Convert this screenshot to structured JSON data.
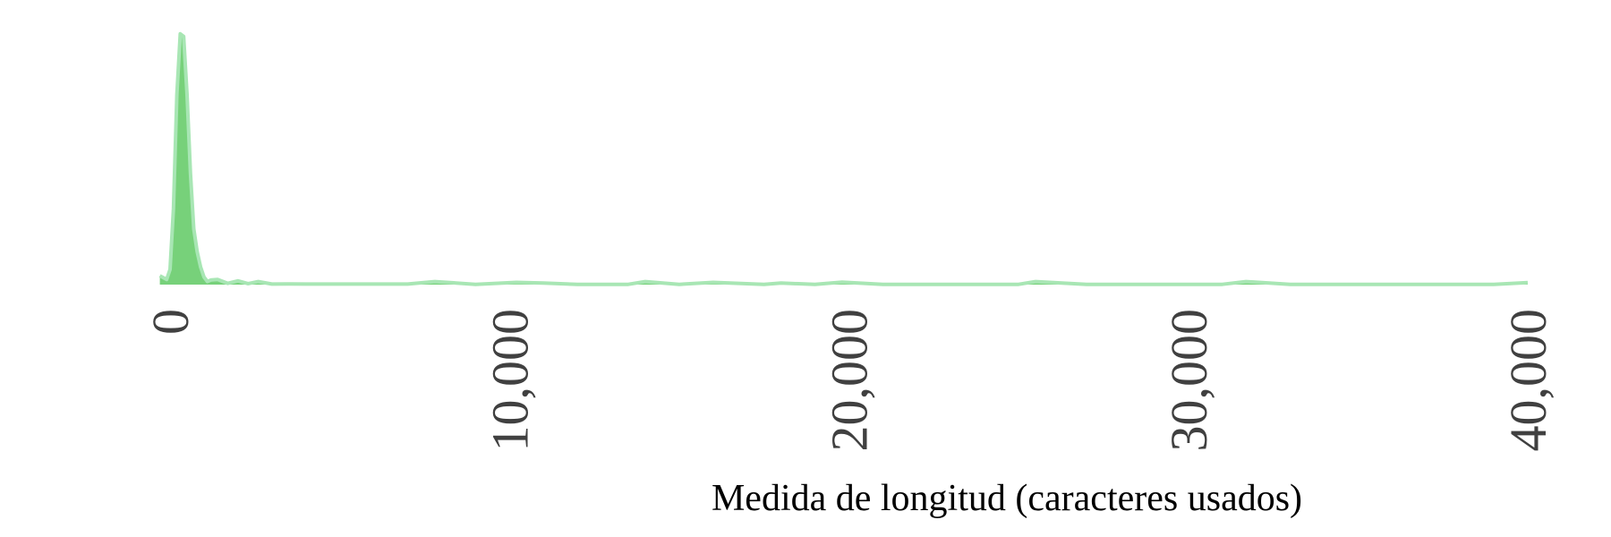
{
  "chart_data": {
    "type": "area",
    "title": "",
    "xlabel": "Medida de longitud (caracteres usados)",
    "ylabel": "",
    "xlim": [
      -300,
      40000
    ],
    "ylim": [
      0,
      1
    ],
    "grid": false,
    "x_ticks": [
      {
        "value": 0,
        "label": "0"
      },
      {
        "value": 10000,
        "label": "10,000"
      },
      {
        "value": 20000,
        "label": "20,000"
      },
      {
        "value": 30000,
        "label": "30,000"
      },
      {
        "value": 40000,
        "label": "40,000"
      }
    ],
    "series": [
      {
        "fill_color": "#77d17a",
        "line_color": "#a8e6b4",
        "x": [
          -300,
          -100,
          0,
          100,
          200,
          300,
          400,
          500,
          600,
          700,
          800,
          900,
          1000,
          1100,
          1200,
          1400,
          1700,
          2000,
          2300,
          2600,
          3000,
          3500,
          4000,
          5000,
          6000,
          7000,
          7800,
          9000,
          10200,
          11000,
          12000,
          13500,
          14000,
          15000,
          16000,
          17500,
          18000,
          19000,
          19800,
          21000,
          23000,
          25000,
          25500,
          27000,
          29000,
          31000,
          31700,
          33000,
          35000,
          37000,
          39000,
          40000
        ],
        "y": [
          0.035,
          0.02,
          0.06,
          0.3,
          0.75,
          0.99,
          0.98,
          0.75,
          0.44,
          0.22,
          0.13,
          0.07,
          0.03,
          0.012,
          0.018,
          0.02,
          0.005,
          0.015,
          0.004,
          0.012,
          0.002,
          0.003,
          0.002,
          0.002,
          0.002,
          0.002,
          0.012,
          0.001,
          0.009,
          0.006,
          0.001,
          0.001,
          0.012,
          0.001,
          0.009,
          0.001,
          0.006,
          0.001,
          0.01,
          0.001,
          0.001,
          0.001,
          0.012,
          0.001,
          0.001,
          0.001,
          0.012,
          0.001,
          0.001,
          0.001,
          0.001,
          0.008
        ]
      }
    ]
  }
}
